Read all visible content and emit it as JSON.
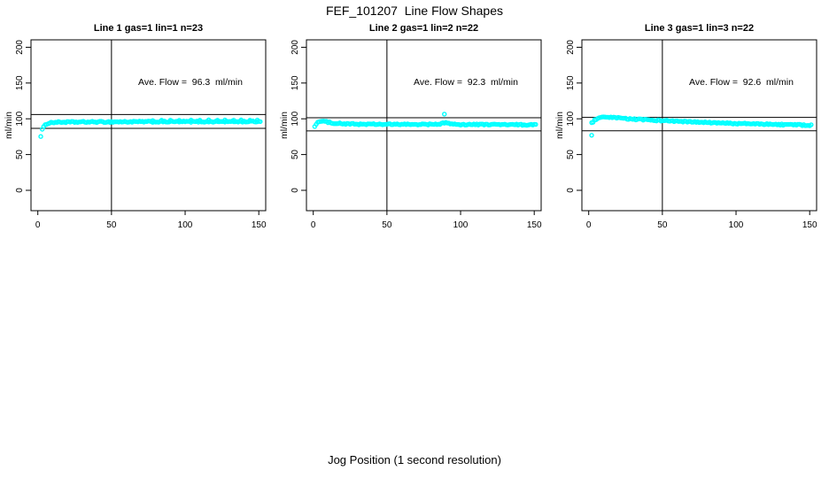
{
  "figure": {
    "title": "FEF_101207  Line Flow Shapes",
    "xlabel": "Jog Position (1 second resolution)",
    "background_color": "#ffffff",
    "axis_color": "#000000",
    "point_color": "#00FFFF"
  },
  "chart_data": [
    {
      "type": "scatter",
      "title": "Line 1 gas=1 lin=1 n=23",
      "annotation": "Ave. Flow =  96.3  ml/min",
      "ave_flow_ml_min": 96.3,
      "ylabel": "ml/min",
      "x_ticks": [
        0,
        50,
        100,
        150
      ],
      "y_ticks": [
        0,
        50,
        100,
        150,
        200
      ],
      "xlim": [
        0,
        155
      ],
      "ylim": [
        0,
        200
      ],
      "hlines": [
        105.9,
        86.7
      ],
      "vline": 50,
      "grid": false,
      "series_profile": [
        [
          2,
          76
        ],
        [
          3,
          85
        ],
        [
          4,
          88.5
        ],
        [
          5,
          91
        ],
        [
          6,
          93
        ],
        [
          8,
          94.5
        ],
        [
          12,
          95.2
        ],
        [
          30,
          95.5
        ],
        [
          60,
          95.8
        ],
        [
          100,
          96
        ],
        [
          151,
          96.2
        ]
      ],
      "extra_points": [
        [
          78,
          97.5
        ],
        [
          84,
          98
        ],
        [
          90,
          98
        ],
        [
          96,
          97.8
        ],
        [
          104,
          98.2
        ],
        [
          110,
          98
        ],
        [
          116,
          98.5
        ],
        [
          122,
          98
        ],
        [
          127,
          98.3
        ],
        [
          133,
          98
        ],
        [
          138,
          98.4
        ],
        [
          144,
          98
        ],
        [
          149,
          98.2
        ]
      ],
      "jitter": 0.9,
      "x_step": 1
    },
    {
      "type": "scatter",
      "title": "Line 2 gas=1 lin=2 n=22",
      "annotation": "Ave. Flow =  92.3  ml/min",
      "ave_flow_ml_min": 92.3,
      "ylabel": "ml/min",
      "x_ticks": [
        0,
        50,
        100,
        150
      ],
      "y_ticks": [
        0,
        50,
        100,
        150,
        200
      ],
      "xlim": [
        0,
        155
      ],
      "ylim": [
        0,
        200
      ],
      "hlines": [
        101.5,
        83.1
      ],
      "vline": 50,
      "grid": false,
      "series_profile": [
        [
          1,
          89.5
        ],
        [
          2,
          93
        ],
        [
          3,
          95
        ],
        [
          5,
          96.5
        ],
        [
          8,
          96
        ],
        [
          12,
          94.5
        ],
        [
          20,
          93
        ],
        [
          30,
          92.5
        ],
        [
          50,
          92.2
        ],
        [
          86,
          92.2
        ],
        [
          89,
          94.5
        ],
        [
          92,
          94
        ],
        [
          96,
          92
        ],
        [
          120,
          92
        ],
        [
          151,
          91.5
        ]
      ],
      "extra_points": [
        [
          89,
          106.5
        ]
      ],
      "jitter": 0.9,
      "x_step": 1
    },
    {
      "type": "scatter",
      "title": "Line 3 gas=1 lin=3 n=22",
      "annotation": "Ave. Flow =  92.6  ml/min",
      "ave_flow_ml_min": 92.6,
      "ylabel": "ml/min",
      "x_ticks": [
        0,
        50,
        100,
        150
      ],
      "y_ticks": [
        0,
        50,
        100,
        150,
        200
      ],
      "xlim": [
        0,
        155
      ],
      "ylim": [
        0,
        200
      ],
      "hlines": [
        101.9,
        83.3
      ],
      "vline": 50,
      "grid": false,
      "series_profile": [
        [
          2,
          94
        ],
        [
          4,
          98
        ],
        [
          6,
          100.5
        ],
        [
          10,
          102
        ],
        [
          18,
          101.5
        ],
        [
          30,
          99.5
        ],
        [
          50,
          97.5
        ],
        [
          70,
          95.5
        ],
        [
          90,
          94
        ],
        [
          110,
          93
        ],
        [
          130,
          92
        ],
        [
          151,
          91
        ]
      ],
      "extra_points": [
        [
          2,
          77
        ]
      ],
      "jitter": 0.9,
      "x_step": 1
    }
  ]
}
